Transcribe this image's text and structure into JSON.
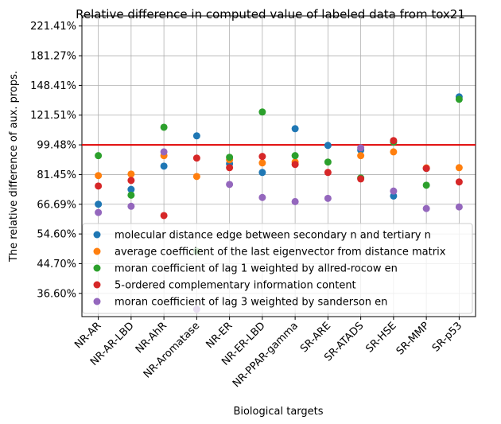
{
  "chart_data": {
    "type": "scatter",
    "title": "Relative difference in computed value of labeled data from tox21",
    "x_label": "Biological targets",
    "y_label": "The relative difference of aux. props.",
    "categories": [
      "NR-AR",
      "NR-AR-LBD",
      "NR-AhR",
      "NR-Aromatase",
      "NR-ER",
      "NR-ER-LBD",
      "NR-PPAR-gamma",
      "SR-ARE",
      "SR-ATADS",
      "SR-HSE",
      "SR-MMP",
      "SR-p53"
    ],
    "log_scale_y": true,
    "ylim": [
      31.3,
      237
    ],
    "yticks": [
      {
        "value": 36.6,
        "label": "36.60%"
      },
      {
        "value": 44.7,
        "label": "44.70%"
      },
      {
        "value": 54.6,
        "label": "54.60%"
      },
      {
        "value": 66.69,
        "label": "66.69%"
      },
      {
        "value": 81.45,
        "label": "81.45%"
      },
      {
        "value": 99.48,
        "label": "99.48%"
      },
      {
        "value": 121.51,
        "label": "121.51%"
      },
      {
        "value": 148.41,
        "label": "148.41%"
      },
      {
        "value": 181.27,
        "label": "181.27%"
      },
      {
        "value": 221.41,
        "label": "221.41%"
      }
    ],
    "grid": true,
    "legend": "lower right",
    "reference_line": {
      "value": 99.48,
      "color": "#e00000"
    },
    "series": [
      {
        "name": "molecular distance edge between secondary n and tertiary n",
        "color": "#1f77b4",
        "values": [
          66.7,
          73.7,
          86.2,
          105.7,
          87.6,
          82.6,
          110.9,
          99.1,
          96.0,
          70.5,
          84.9,
          137.4
        ]
      },
      {
        "name": "average coefficient of the last eigenvector from distance matrix",
        "color": "#ff7f0e",
        "values": [
          80.9,
          81.7,
          92.5,
          80.4,
          90.0,
          88.1,
          88.6,
          null,
          92.5,
          94.9,
          85.2,
          85.3
        ]
      },
      {
        "name": "moran coefficient of lag 1 weighted by allred-rocow en",
        "color": "#2ca02c",
        "values": [
          92.5,
          70.9,
          112.0,
          48.6,
          91.5,
          124.1,
          92.5,
          88.6,
          79.6,
          101.4,
          75.8,
          135.2
        ]
      },
      {
        "name": "5-ordered complementary information content",
        "color": "#d62728",
        "values": [
          75.4,
          78.3,
          61.8,
          91.0,
          85.3,
          92.0,
          87.2,
          82.6,
          79.1,
          102.4,
          84.9,
          77.5
        ]
      },
      {
        "name": "moran coefficient of lag 3 weighted by sanderson en",
        "color": "#9467bd",
        "values": [
          63.1,
          65.8,
          94.9,
          32.9,
          76.2,
          69.8,
          67.9,
          69.4,
          97.5,
          72.9,
          64.8,
          65.5
        ]
      }
    ]
  }
}
